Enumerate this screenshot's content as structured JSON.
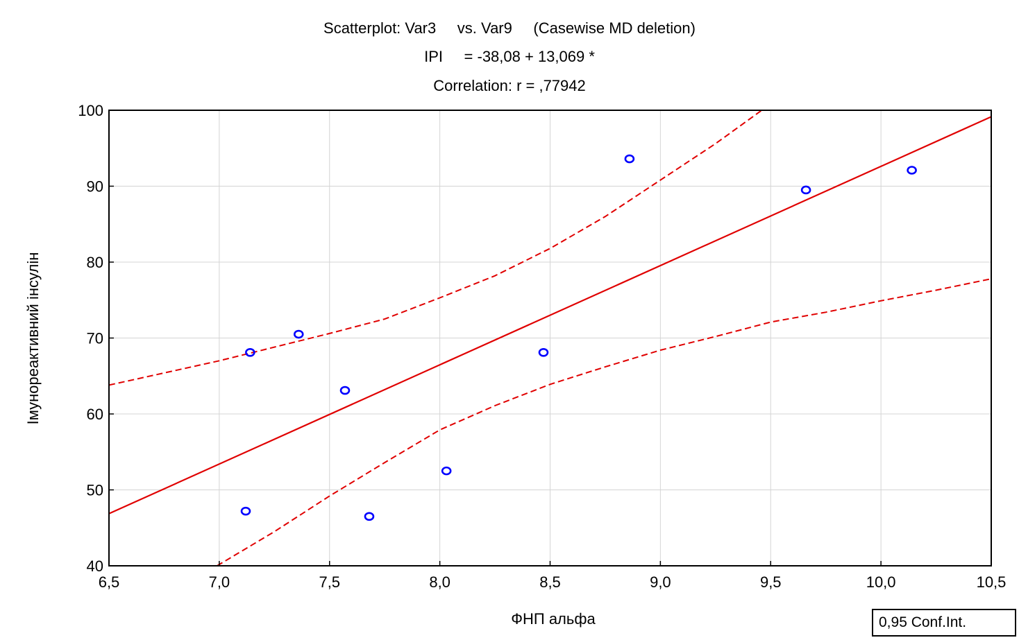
{
  "chart_data": {
    "type": "scatter",
    "title_lines": [
      "Scatterplot: Var3     vs. Var9     (Casewise MD deletion)",
      "IPI     = -38,08 + 13,069 *",
      "Correlation: r = ,77942"
    ],
    "xlabel": "ФНП альфа",
    "ylabel": "Імунореактивний інсулін",
    "xlim": [
      6.5,
      10.5
    ],
    "ylim": [
      40,
      100
    ],
    "x_ticks": [
      6.5,
      7.0,
      7.5,
      8.0,
      8.5,
      9.0,
      9.5,
      10.0,
      10.5
    ],
    "x_tick_labels": [
      "6,5",
      "7,0",
      "7,5",
      "8,0",
      "8,5",
      "9,0",
      "9,5",
      "10,0",
      "10,5"
    ],
    "y_ticks": [
      40,
      50,
      60,
      70,
      80,
      90,
      100
    ],
    "y_tick_labels": [
      "40",
      "50",
      "60",
      "70",
      "80",
      "90",
      "100"
    ],
    "grid": true,
    "points": [
      {
        "x": 7.12,
        "y": 47.2
      },
      {
        "x": 7.14,
        "y": 68.1
      },
      {
        "x": 7.36,
        "y": 70.5
      },
      {
        "x": 7.57,
        "y": 63.1
      },
      {
        "x": 7.68,
        "y": 46.5
      },
      {
        "x": 8.03,
        "y": 52.5
      },
      {
        "x": 8.47,
        "y": 68.1
      },
      {
        "x": 8.86,
        "y": 93.6
      },
      {
        "x": 9.66,
        "y": 89.5
      },
      {
        "x": 10.14,
        "y": 92.1
      }
    ],
    "regression": {
      "intercept": -38.08,
      "slope": 13.069
    },
    "confidence_band": {
      "upper": [
        {
          "x": 6.5,
          "y": 63.8
        },
        {
          "x": 7.0,
          "y": 67.0
        },
        {
          "x": 7.5,
          "y": 70.6
        },
        {
          "x": 7.75,
          "y": 72.5
        },
        {
          "x": 8.0,
          "y": 75.3
        },
        {
          "x": 8.25,
          "y": 78.2
        },
        {
          "x": 8.5,
          "y": 81.8
        },
        {
          "x": 8.75,
          "y": 86.0
        },
        {
          "x": 9.0,
          "y": 90.8
        },
        {
          "x": 9.25,
          "y": 95.6
        },
        {
          "x": 9.46,
          "y": 100.0
        }
      ],
      "lower": [
        {
          "x": 6.99,
          "y": 40.0
        },
        {
          "x": 7.25,
          "y": 44.5
        },
        {
          "x": 7.5,
          "y": 49.2
        },
        {
          "x": 7.75,
          "y": 53.6
        },
        {
          "x": 8.0,
          "y": 57.9
        },
        {
          "x": 8.25,
          "y": 61.1
        },
        {
          "x": 8.5,
          "y": 63.9
        },
        {
          "x": 8.75,
          "y": 66.2
        },
        {
          "x": 9.0,
          "y": 68.4
        },
        {
          "x": 9.25,
          "y": 70.2
        },
        {
          "x": 9.5,
          "y": 72.1
        },
        {
          "x": 9.75,
          "y": 73.4
        },
        {
          "x": 10.0,
          "y": 74.9
        },
        {
          "x": 10.25,
          "y": 76.3
        },
        {
          "x": 10.5,
          "y": 77.8
        }
      ]
    },
    "legend_label": "0,95 Conf.Int.",
    "colors": {
      "points": "#0000ff",
      "lines": "#e00000",
      "grid": "#d4d4d4",
      "axis": "#000000"
    }
  }
}
